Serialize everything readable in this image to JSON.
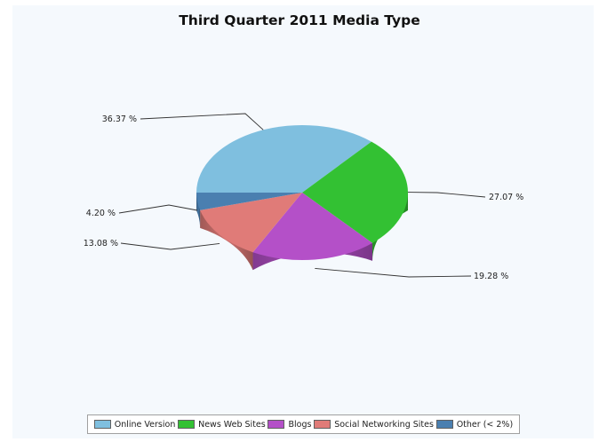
{
  "chart_data": {
    "type": "pie",
    "title": "Third Quarter 2011 Media Type",
    "slices": [
      {
        "name": "Online Version",
        "value": 36.37,
        "label": "36.37 %",
        "color": "#7fbfdf"
      },
      {
        "name": "News Web Sites",
        "value": 27.07,
        "label": "27.07 %",
        "color": "#33c133"
      },
      {
        "name": "Blogs",
        "value": 19.28,
        "label": "19.28 %",
        "color": "#b450c8"
      },
      {
        "name": "Social Networking Sites",
        "value": 13.08,
        "label": "13.08 %",
        "color": "#e07b78"
      },
      {
        "name": "Other (< 2%)",
        "value": 4.2,
        "label": "4.20 %",
        "color": "#4a7fb0"
      }
    ],
    "legend_position": "bottom",
    "style": "3d"
  }
}
